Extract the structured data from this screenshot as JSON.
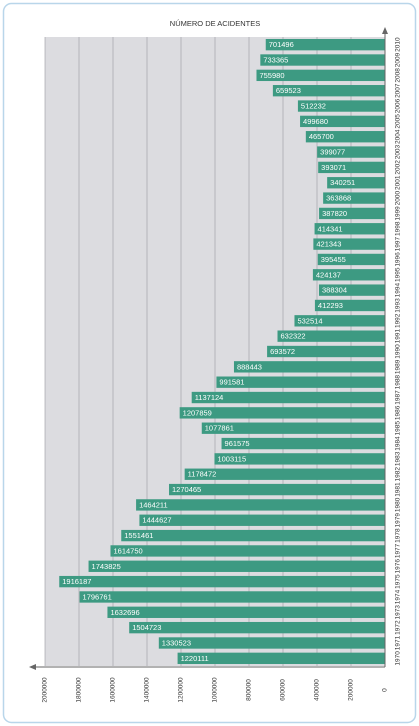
{
  "chart_data": {
    "type": "bar",
    "orientation": "horizontal",
    "title": "NÚMERO DE ACIDENTES",
    "categories": [
      "1970",
      "1971",
      "1972",
      "1973",
      "1974",
      "1975",
      "1976",
      "1977",
      "1978",
      "1979",
      "1980",
      "1981",
      "1982",
      "1983",
      "1984",
      "1985",
      "1986",
      "1987",
      "1988",
      "1989",
      "1990",
      "1991",
      "1992",
      "1993",
      "1994",
      "1995",
      "1996",
      "1997",
      "1998",
      "1999",
      "2000",
      "2001",
      "2002",
      "2003",
      "2004",
      "2005",
      "2006",
      "2007",
      "2008",
      "2009",
      "2010"
    ],
    "values": [
      1220111,
      1330523,
      1504723,
      1632696,
      1796761,
      1916187,
      1743825,
      1614750,
      1551461,
      1444627,
      1464211,
      1270465,
      1178472,
      1003115,
      961575,
      1077861,
      1207859,
      1137124,
      991581,
      888443,
      693572,
      632322,
      532514,
      412293,
      388304,
      424137,
      395455,
      421343,
      414341,
      387820,
      363868,
      340251,
      393071,
      399077,
      465700,
      499680,
      512232,
      659523,
      755980,
      733365,
      701496
    ],
    "color": "#3d9a82",
    "xlim": [
      0,
      2000000
    ],
    "xticks": [
      0,
      200000,
      400000,
      600000,
      800000,
      1000000,
      1200000,
      1400000,
      1600000,
      1800000,
      2000000
    ],
    "x_reversed": true,
    "grid": true
  }
}
